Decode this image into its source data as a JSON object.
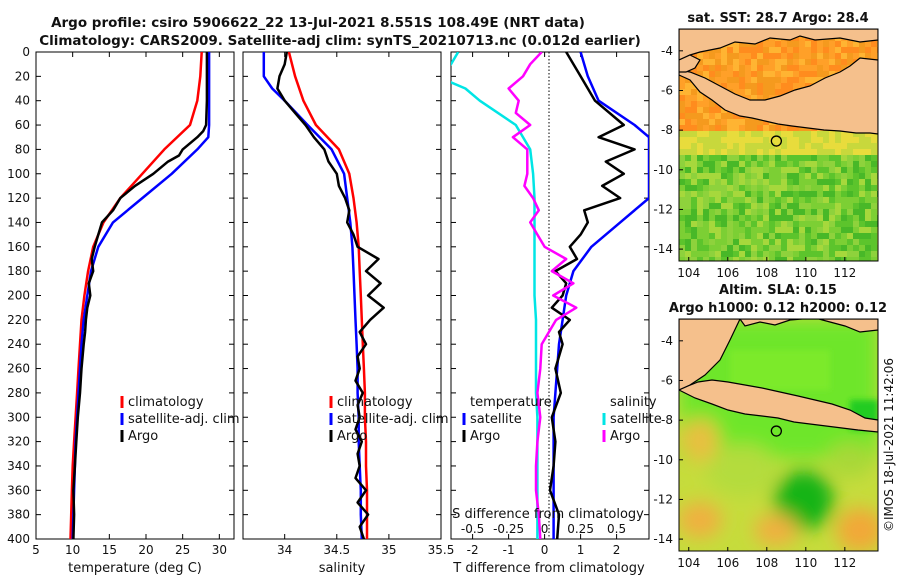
{
  "title": {
    "line1": "Argo profile: csiro 5906622_22 13-Jul-2021 8.551S 108.49E (NRT data)",
    "line2": "Climatology: CARS2009. Satellite-adj clim: synTS_20210713.nc (0.012d earlier)"
  },
  "footer": "©IMOS 18-Jul-2021 11:42:06",
  "colors": {
    "climatology": "#ff0000",
    "satellite": "#0000ff",
    "argo": "#000000",
    "cyan": "#00e5e5",
    "magenta": "#ff00ff",
    "land": "#f5c08c",
    "coast": "#000000"
  },
  "chart_data": [
    {
      "type": "line",
      "id": "temperature",
      "xlabel": "temperature (deg C)",
      "xlim": [
        5,
        32
      ],
      "ylim": [
        0,
        400
      ],
      "y_reversed": true,
      "xticks": [
        5,
        10,
        15,
        20,
        25,
        30
      ],
      "yticks": [
        0,
        20,
        40,
        60,
        80,
        100,
        120,
        140,
        160,
        180,
        200,
        220,
        240,
        260,
        280,
        300,
        320,
        340,
        360,
        380,
        400
      ],
      "legend": [
        "climatology",
        "satellite-adj. clim",
        "Argo"
      ],
      "series": [
        {
          "name": "climatology",
          "color": "#ff0000",
          "depth": [
            0,
            20,
            40,
            60,
            80,
            100,
            120,
            140,
            160,
            180,
            200,
            220,
            240,
            260,
            280,
            300,
            320,
            340,
            360,
            380,
            400
          ],
          "values": [
            27.6,
            27.4,
            27.0,
            26.0,
            22.5,
            19.5,
            16.5,
            14.2,
            12.8,
            12.1,
            11.6,
            11.2,
            11.0,
            10.8,
            10.6,
            10.4,
            10.2,
            10.0,
            9.9,
            9.8,
            9.7
          ]
        },
        {
          "name": "satellite-adj. clim",
          "color": "#0000ff",
          "depth": [
            0,
            20,
            40,
            60,
            70,
            80,
            100,
            120,
            140,
            160,
            180,
            200,
            220,
            240,
            260,
            280,
            300,
            320,
            340,
            360,
            380,
            400
          ],
          "values": [
            28.6,
            28.6,
            28.6,
            28.6,
            28.5,
            27.0,
            23.5,
            19.5,
            15.5,
            13.5,
            12.5,
            12.0,
            11.5,
            11.2,
            11.0,
            10.8,
            10.6,
            10.4,
            10.3,
            10.2,
            10.1,
            10.0
          ]
        },
        {
          "name": "Argo",
          "color": "#000000",
          "depth": [
            0,
            20,
            40,
            60,
            65,
            70,
            75,
            80,
            85,
            90,
            100,
            110,
            120,
            130,
            140,
            150,
            160,
            170,
            180,
            190,
            200,
            210,
            220,
            230,
            240,
            260,
            280,
            300,
            320,
            340,
            360,
            380,
            400
          ],
          "values": [
            28.3,
            28.3,
            28.3,
            28.2,
            27.8,
            27.0,
            26.0,
            25.0,
            24.5,
            23.0,
            21.0,
            18.5,
            16.5,
            15.5,
            14.0,
            13.5,
            13.0,
            12.6,
            12.8,
            12.2,
            12.4,
            12.0,
            11.8,
            11.7,
            11.5,
            11.2,
            11.0,
            10.7,
            10.5,
            10.3,
            10.1,
            10.2,
            10.1
          ]
        }
      ]
    },
    {
      "type": "line",
      "id": "salinity",
      "xlabel": "salinity",
      "xlim": [
        33.6,
        35.5
      ],
      "ylim": [
        0,
        400
      ],
      "y_reversed": true,
      "xticks": [
        34,
        34.5,
        35,
        35.5
      ],
      "xticklabels": [
        "34",
        "34.5",
        "35",
        "35.5"
      ],
      "legend": [
        "climatology",
        "satellite-adj. clim",
        "Argo"
      ],
      "series": [
        {
          "name": "climatology",
          "color": "#ff0000",
          "depth": [
            0,
            20,
            40,
            60,
            80,
            100,
            120,
            140,
            160,
            180,
            200,
            220,
            240,
            260,
            280,
            300,
            320,
            340,
            360,
            380,
            400
          ],
          "values": [
            34.04,
            34.1,
            34.18,
            34.3,
            34.52,
            34.62,
            34.66,
            34.69,
            34.71,
            34.72,
            34.73,
            34.74,
            34.75,
            34.76,
            34.77,
            34.77,
            34.78,
            34.78,
            34.79,
            34.79,
            34.79
          ]
        },
        {
          "name": "satellite-adj. clim",
          "color": "#0000ff",
          "depth": [
            0,
            20,
            30,
            40,
            60,
            80,
            100,
            120,
            140,
            160,
            180,
            200,
            220,
            240,
            260,
            280,
            300,
            320,
            340,
            360,
            380,
            400
          ],
          "values": [
            33.8,
            33.8,
            33.88,
            34.0,
            34.22,
            34.45,
            34.57,
            34.6,
            34.63,
            34.65,
            34.66,
            34.67,
            34.68,
            34.69,
            34.7,
            34.7,
            34.71,
            34.71,
            34.72,
            34.73,
            34.73,
            34.74
          ]
        },
        {
          "name": "Argo",
          "color": "#000000",
          "depth": [
            0,
            10,
            20,
            30,
            40,
            50,
            60,
            70,
            80,
            90,
            100,
            110,
            120,
            130,
            140,
            150,
            160,
            170,
            180,
            190,
            200,
            210,
            220,
            230,
            240,
            250,
            260,
            270,
            280,
            290,
            300,
            310,
            320,
            330,
            340,
            350,
            360,
            370,
            380,
            390,
            400
          ],
          "values": [
            34.02,
            34.0,
            33.95,
            33.93,
            34.0,
            34.1,
            34.2,
            34.28,
            34.38,
            34.42,
            34.5,
            34.52,
            34.58,
            34.62,
            34.6,
            34.66,
            34.7,
            34.9,
            34.78,
            34.92,
            34.8,
            34.95,
            34.82,
            34.72,
            34.78,
            34.7,
            34.72,
            34.68,
            34.75,
            34.7,
            34.72,
            34.68,
            34.74,
            34.7,
            34.72,
            34.68,
            34.78,
            34.7,
            34.8,
            34.72,
            34.76
          ]
        }
      ]
    },
    {
      "type": "line",
      "id": "difference",
      "xlabel": "T difference from climatology",
      "xlim": [
        -2.6,
        2.9
      ],
      "ylim": [
        0,
        400
      ],
      "y_reversed": true,
      "xticks": [
        -2,
        -1,
        0,
        1,
        2
      ],
      "secondary_axis": {
        "label": "S difference from climatology",
        "ticks": [
          -0.5,
          -0.25,
          0,
          0.25,
          0.5
        ],
        "ticklabels": [
          "-0.5",
          "-0.25",
          "0",
          "0.25",
          "0.5"
        ],
        "scale": 4
      },
      "legend_left_title": "temperature",
      "legend_right_title": "salinity",
      "legend": [
        "satellite",
        "Argo",
        "satellite",
        "Argo"
      ],
      "series": [
        {
          "name": "T satellite",
          "color": "#0000ff",
          "depth": [
            0,
            20,
            40,
            60,
            70,
            80,
            100,
            110,
            120,
            140,
            160,
            180,
            200,
            220,
            240,
            260,
            280,
            300,
            320,
            340,
            360,
            380,
            400
          ],
          "values": [
            1.0,
            1.2,
            1.5,
            2.5,
            2.9,
            2.9,
            2.9,
            2.9,
            2.9,
            2.1,
            1.3,
            0.8,
            0.6,
            0.5,
            0.4,
            0.35,
            0.3,
            0.25,
            0.25,
            0.25,
            0.25,
            0.25,
            0.25
          ]
        },
        {
          "name": "T Argo",
          "color": "#000000",
          "depth": [
            0,
            20,
            40,
            60,
            70,
            80,
            90,
            100,
            110,
            120,
            130,
            140,
            150,
            160,
            170,
            180,
            190,
            200,
            210,
            220,
            230,
            240,
            260,
            280,
            300,
            320,
            340,
            360,
            380,
            400
          ],
          "values": [
            0.6,
            1.0,
            1.4,
            2.2,
            1.5,
            2.5,
            1.7,
            2.2,
            1.6,
            2.1,
            1.1,
            1.2,
            1.0,
            0.7,
            0.9,
            0.3,
            0.6,
            0.5,
            0.2,
            0.7,
            0.4,
            0.5,
            0.3,
            0.45,
            0.2,
            0.3,
            0.25,
            0.15,
            0.4,
            0.35
          ]
        },
        {
          "name": "S satellite",
          "color": "#00e5e5",
          "depth": [
            0,
            10,
            20,
            30,
            40,
            60,
            80,
            100,
            120,
            140,
            160,
            180,
            200,
            220,
            240,
            260,
            280,
            300,
            320,
            340,
            360,
            380,
            400
          ],
          "values": [
            -0.6,
            -0.65,
            -0.75,
            -0.55,
            -0.45,
            -0.2,
            -0.1,
            -0.08,
            -0.07,
            -0.07,
            -0.07,
            -0.07,
            -0.07,
            -0.06,
            -0.06,
            -0.06,
            -0.06,
            -0.05,
            -0.05,
            -0.05,
            -0.05,
            -0.05,
            -0.05
          ]
        },
        {
          "name": "S Argo",
          "color": "#ff00ff",
          "depth": [
            0,
            10,
            20,
            30,
            40,
            50,
            60,
            70,
            80,
            90,
            100,
            110,
            120,
            130,
            140,
            150,
            160,
            170,
            180,
            190,
            200,
            210,
            220,
            240,
            260,
            280,
            300,
            320,
            340,
            360,
            380,
            400
          ],
          "values": [
            -0.02,
            -0.1,
            -0.15,
            -0.25,
            -0.18,
            -0.2,
            -0.1,
            -0.22,
            -0.12,
            -0.12,
            -0.12,
            -0.14,
            -0.08,
            -0.04,
            -0.1,
            -0.05,
            0.0,
            0.15,
            0.05,
            0.2,
            0.06,
            0.22,
            0.08,
            -0.02,
            -0.03,
            -0.05,
            -0.03,
            -0.05,
            -0.06,
            -0.06,
            -0.04,
            -0.03
          ]
        }
      ]
    },
    {
      "type": "heatmap",
      "id": "sst_map",
      "title": "sat. SST: 28.7 Argo: 28.4",
      "xlim": [
        103.5,
        113.7
      ],
      "ylim": [
        -14.6,
        -2.9
      ],
      "xticks": [
        104,
        106,
        108,
        110,
        112
      ],
      "yticks": [
        -4,
        -6,
        -8,
        -10,
        -12,
        -14
      ],
      "argo_location": {
        "lon": 108.49,
        "lat": -8.551
      }
    },
    {
      "type": "heatmap",
      "id": "sla_map",
      "title": "Altim. SLA: 0.15",
      "subtitle": "Argo h1000: 0.12 h2000: 0.12",
      "xlim": [
        103.5,
        113.7
      ],
      "ylim": [
        -14.6,
        -2.9
      ],
      "xticks": [
        104,
        106,
        108,
        110,
        112
      ],
      "yticks": [
        -4,
        -6,
        -8,
        -10,
        -12,
        -14
      ],
      "argo_location": {
        "lon": 108.49,
        "lat": -8.551
      }
    }
  ]
}
